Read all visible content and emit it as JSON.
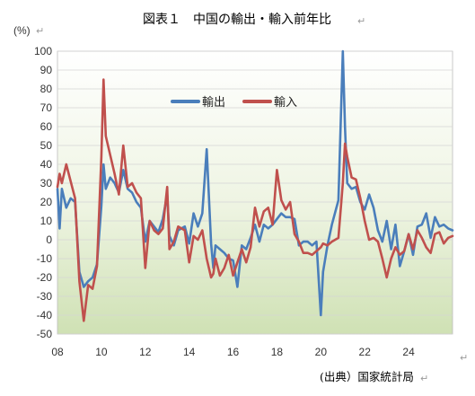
{
  "chart_data": {
    "type": "line",
    "title": "図表１　中国の輸出・輸入前年比",
    "ylabel": "(%)",
    "source": "(出典）国家統計局",
    "xlim": [
      2008,
      2026.0
    ],
    "ylim": [
      -50,
      100
    ],
    "y_ticks": [
      100,
      90,
      80,
      70,
      60,
      50,
      40,
      30,
      20,
      10,
      0,
      -10,
      -20,
      -30,
      -40,
      -50
    ],
    "x_ticks": [
      {
        "x": 2008,
        "label": "08"
      },
      {
        "x": 2010,
        "label": "10"
      },
      {
        "x": 2012,
        "label": "12"
      },
      {
        "x": 2014,
        "label": "14"
      },
      {
        "x": 2016,
        "label": "16"
      },
      {
        "x": 2018,
        "label": "18"
      },
      {
        "x": 2020,
        "label": "20"
      },
      {
        "x": 2022,
        "label": "22"
      },
      {
        "x": 2024,
        "label": "24"
      }
    ],
    "legend_position": "top-center",
    "grid": {
      "x": false,
      "y": true
    },
    "background": "gradient green",
    "series": [
      {
        "name": "輸出",
        "color": "#4a7ebb",
        "x": [
          2008.0,
          2008.1,
          2008.2,
          2008.4,
          2008.6,
          2008.8,
          2009.0,
          2009.2,
          2009.4,
          2009.6,
          2009.8,
          2010.0,
          2010.1,
          2010.2,
          2010.4,
          2010.6,
          2010.8,
          2011.0,
          2011.2,
          2011.4,
          2011.6,
          2011.8,
          2012.0,
          2012.2,
          2012.4,
          2012.6,
          2012.8,
          2013.0,
          2013.1,
          2013.3,
          2013.5,
          2013.8,
          2014.0,
          2014.2,
          2014.4,
          2014.6,
          2014.8,
          2015.0,
          2015.1,
          2015.2,
          2015.4,
          2015.6,
          2015.8,
          2016.0,
          2016.2,
          2016.4,
          2016.6,
          2016.8,
          2017.0,
          2017.2,
          2017.4,
          2017.6,
          2017.8,
          2018.0,
          2018.2,
          2018.4,
          2018.6,
          2018.8,
          2019.0,
          2019.2,
          2019.4,
          2019.6,
          2019.8,
          2020.0,
          2020.1,
          2020.3,
          2020.5,
          2020.8,
          2021.0,
          2021.1,
          2021.2,
          2021.4,
          2021.6,
          2021.8,
          2022.0,
          2022.2,
          2022.4,
          2022.6,
          2022.8,
          2023.0,
          2023.2,
          2023.4,
          2023.6,
          2023.8,
          2024.0,
          2024.2,
          2024.4,
          2024.6,
          2024.8,
          2025.0,
          2025.2,
          2025.4,
          2025.6,
          2025.8,
          2026.0
        ],
        "values": [
          27,
          6,
          27,
          17,
          22,
          20,
          -17,
          -25,
          -22,
          -20,
          -13,
          18,
          40,
          27,
          33,
          30,
          25,
          37,
          27,
          25,
          20,
          17,
          -1,
          10,
          7,
          4,
          11,
          24,
          2,
          -3,
          5,
          7,
          -2,
          14,
          7,
          14,
          48,
          -2,
          -15,
          -3,
          -5,
          -7,
          -10,
          -11,
          -25,
          -3,
          -5,
          1,
          8,
          -1,
          8,
          6,
          8,
          11,
          14,
          12,
          12,
          11,
          -3,
          -1,
          -1,
          -3,
          -1,
          -40,
          -17,
          -3,
          8,
          21,
          100,
          60,
          30,
          27,
          28,
          20,
          16,
          24,
          17,
          5,
          -1,
          10,
          -5,
          8,
          -14,
          -6,
          3,
          -8,
          7,
          8,
          14,
          1,
          12,
          7,
          8,
          6,
          5
        ]
      },
      {
        "name": "輸入",
        "color": "#c0504d",
        "x": [
          2008.0,
          2008.1,
          2008.2,
          2008.4,
          2008.6,
          2008.8,
          2009.0,
          2009.2,
          2009.4,
          2009.6,
          2009.8,
          2010.0,
          2010.1,
          2010.2,
          2010.4,
          2010.6,
          2010.8,
          2011.0,
          2011.2,
          2011.4,
          2011.6,
          2011.8,
          2012.0,
          2012.2,
          2012.4,
          2012.6,
          2012.8,
          2013.0,
          2013.1,
          2013.3,
          2013.5,
          2013.8,
          2014.0,
          2014.2,
          2014.4,
          2014.6,
          2014.8,
          2015.0,
          2015.1,
          2015.2,
          2015.4,
          2015.6,
          2015.8,
          2016.0,
          2016.2,
          2016.4,
          2016.6,
          2016.8,
          2017.0,
          2017.2,
          2017.4,
          2017.6,
          2017.8,
          2018.0,
          2018.2,
          2018.4,
          2018.6,
          2018.8,
          2019.0,
          2019.2,
          2019.4,
          2019.6,
          2019.8,
          2020.0,
          2020.1,
          2020.3,
          2020.5,
          2020.8,
          2021.0,
          2021.1,
          2021.2,
          2021.4,
          2021.6,
          2021.8,
          2022.0,
          2022.2,
          2022.4,
          2022.6,
          2022.8,
          2023.0,
          2023.2,
          2023.4,
          2023.6,
          2023.8,
          2024.0,
          2024.2,
          2024.4,
          2024.6,
          2024.8,
          2025.0,
          2025.2,
          2025.4,
          2025.6,
          2025.8,
          2026.0
        ],
        "values": [
          28,
          35,
          30,
          40,
          31,
          22,
          -22,
          -43,
          -24,
          -26,
          -14,
          44,
          85,
          55,
          45,
          35,
          24,
          50,
          28,
          30,
          25,
          22,
          -15,
          10,
          5,
          3,
          6,
          28,
          -5,
          -1,
          7,
          5,
          -12,
          2,
          0,
          5,
          -10,
          -20,
          -18,
          -10,
          -19,
          -15,
          -8,
          -19,
          -12,
          -5,
          -12,
          -4,
          17,
          7,
          15,
          17,
          8,
          37,
          21,
          16,
          20,
          3,
          -1,
          -7,
          -7,
          -8,
          -6,
          -4,
          -2,
          -3,
          -1,
          1,
          30,
          51,
          44,
          33,
          32,
          22,
          10,
          0,
          1,
          -1,
          -10,
          -20,
          -10,
          -4,
          -8,
          -6,
          3,
          -5,
          5,
          1,
          -4,
          -7,
          3,
          4,
          -2,
          1,
          2
        ]
      }
    ]
  }
}
